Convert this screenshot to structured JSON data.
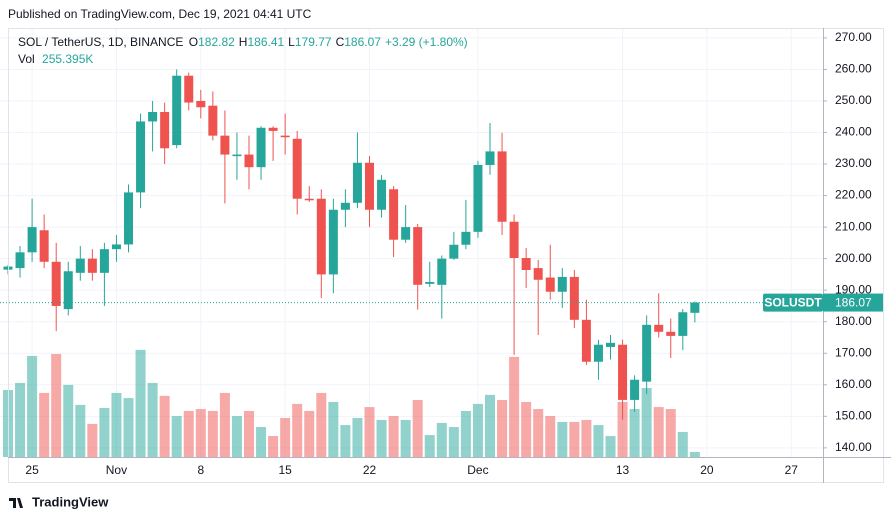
{
  "published": "Published on TradingView.com, Dec 19, 2021 04:41 UTC",
  "brand": "TradingView",
  "chart_data": {
    "type": "candlestick",
    "title": "SOL / TetherUS, 1D, BINANCE",
    "ohlc_keys": [
      "O",
      "H",
      "L",
      "C"
    ],
    "change": "+3.29 (+1.80%)",
    "volume_title": "Vol",
    "symbol": "SOLUSDT",
    "up_color": "#26a69a",
    "down_color": "#ef5350",
    "grid": true,
    "ylim": [
      137.1,
      272.5
    ],
    "yticks": [
      {
        "value": 140,
        "label": "140.00"
      },
      {
        "value": 150,
        "label": "150.00"
      },
      {
        "value": 160,
        "label": "160.00"
      },
      {
        "value": 170,
        "label": "170.00"
      },
      {
        "value": 180,
        "label": "180.00"
      },
      {
        "value": 190,
        "label": "190.00"
      },
      {
        "value": 200,
        "label": "200.00"
      },
      {
        "value": 210,
        "label": "210.00"
      },
      {
        "value": 220,
        "label": "220.00"
      },
      {
        "value": 230,
        "label": "230.00"
      },
      {
        "value": 240,
        "label": "240.00"
      },
      {
        "value": 250,
        "label": "250.00"
      },
      {
        "value": 260,
        "label": "260.00"
      },
      {
        "value": 270,
        "label": "270.00"
      }
    ],
    "volume_ylim": [
      0,
      6540000
    ],
    "categories": [
      null,
      null,
      "25",
      null,
      null,
      null,
      null,
      null,
      null,
      "Nov",
      null,
      null,
      null,
      null,
      null,
      null,
      "8",
      null,
      null,
      null,
      null,
      null,
      null,
      "15",
      null,
      null,
      null,
      null,
      null,
      null,
      "22",
      null,
      null,
      null,
      null,
      null,
      null,
      null,
      null,
      "Dec",
      null,
      null,
      null,
      null,
      null,
      null,
      null,
      null,
      null,
      null,
      null,
      "13",
      null,
      null,
      null,
      null,
      null,
      null,
      "20",
      null,
      null,
      null,
      null,
      null,
      null,
      "27",
      null,
      null
    ],
    "open": [
      196.5,
      197,
      202,
      209,
      199,
      184,
      195.5,
      200,
      195.5,
      203,
      204.5,
      221,
      243.5,
      246.5,
      236,
      258,
      250,
      248.5,
      239,
      232.5,
      233,
      229,
      241.5,
      239,
      238,
      219,
      219,
      195,
      215.5,
      217.7,
      230.4,
      215.5,
      222,
      206,
      210,
      192,
      191.7,
      200,
      204.4,
      208.5,
      229.7,
      234,
      211.7,
      200.2,
      197,
      194,
      189.5,
      194.2,
      180.6,
      167.3,
      172,
      172.7,
      155.2,
      161,
      179,
      176.8,
      175.5,
      182.82,
      null,
      null,
      null,
      null,
      null,
      null,
      null,
      null,
      null,
      null
    ],
    "high": [
      198,
      204,
      219,
      214,
      205,
      199,
      204,
      203,
      205,
      207.5,
      223.5,
      246,
      250,
      249.5,
      260,
      259,
      253.5,
      253,
      247,
      240,
      239,
      242,
      242,
      246,
      240.5,
      223,
      222,
      219,
      222,
      240,
      232.5,
      226.5,
      223,
      217,
      211,
      199,
      201,
      208.5,
      218.6,
      231,
      243,
      239.9,
      214,
      203.4,
      199.6,
      204.4,
      197,
      196.4,
      187,
      174.3,
      175.8,
      174.3,
      163,
      182,
      189,
      181,
      184,
      186.41,
      null,
      null,
      null,
      null,
      null,
      null,
      null,
      null,
      null,
      null
    ],
    "low": [
      195,
      194,
      199,
      197,
      177,
      182,
      193,
      193,
      185,
      199,
      202,
      216,
      234,
      230,
      235,
      247,
      244.5,
      237.5,
      217.5,
      225,
      222,
      225,
      231,
      233,
      214,
      218,
      187.5,
      189,
      210,
      216,
      210,
      213,
      200.5,
      205,
      183.8,
      191,
      181,
      199.6,
      203,
      206.6,
      226.6,
      207.5,
      169.5,
      190.7,
      175.8,
      187,
      184.4,
      178,
      166.3,
      161.6,
      168,
      148.9,
      151.4,
      157,
      175,
      168.5,
      171,
      179.77,
      null,
      null,
      null,
      null,
      null,
      null,
      null,
      null,
      null,
      null
    ],
    "close": [
      197.5,
      202,
      210,
      199,
      185,
      196,
      200,
      195.5,
      203,
      204.5,
      221,
      243.5,
      246.5,
      235,
      258,
      249.5,
      248,
      239,
      233,
      233,
      229,
      241.5,
      240.5,
      238.5,
      219,
      218.5,
      195,
      215.5,
      217.7,
      230.4,
      215.5,
      225,
      206,
      210,
      191.7,
      192.6,
      200,
      204.4,
      208.5,
      229.7,
      234,
      211.7,
      200.2,
      196.4,
      193.3,
      189.5,
      194.2,
      180.6,
      167.3,
      172.7,
      173.3,
      155.2,
      161.6,
      179,
      176.8,
      175.5,
      183,
      186.07,
      null,
      null,
      null,
      null,
      null,
      null,
      null,
      null,
      null,
      null
    ],
    "volume": [
      3420000,
      3780000,
      5160000,
      3270000,
      5260000,
      3680000,
      2660000,
      1690000,
      2500000,
      3270000,
      3010000,
      5470000,
      3780000,
      3120000,
      2090000,
      2350000,
      2450000,
      2350000,
      3270000,
      2090000,
      2350000,
      1530000,
      1070000,
      1990000,
      2710000,
      2350000,
      3270000,
      2810000,
      1630000,
      1990000,
      2550000,
      1890000,
      2090000,
      1890000,
      2910000,
      1120000,
      1740000,
      1530000,
      2350000,
      2710000,
      3170000,
      2910000,
      5110000,
      2810000,
      2450000,
      2090000,
      1790000,
      1790000,
      1890000,
      1630000,
      1070000,
      2810000,
      2450000,
      3520000,
      2550000,
      2450000,
      1280000,
      255395,
      null,
      null,
      null,
      null,
      null,
      null,
      null,
      null,
      null,
      null
    ],
    "volume_value_labels": [
      null,
      null,
      null,
      null,
      null,
      null,
      null,
      null,
      null,
      null,
      null,
      null,
      null,
      null,
      null,
      null,
      null,
      null,
      null,
      null,
      null,
      null,
      null,
      null,
      null,
      null,
      null,
      null,
      null,
      null,
      null,
      null,
      null,
      null,
      null,
      null,
      null,
      null,
      null,
      null,
      null,
      null,
      null,
      null,
      null,
      null,
      null,
      null,
      null,
      null,
      null,
      null,
      null,
      null,
      null,
      null,
      null,
      "255.395K",
      null,
      null,
      null,
      null,
      null,
      null,
      null,
      null,
      null,
      null
    ]
  }
}
